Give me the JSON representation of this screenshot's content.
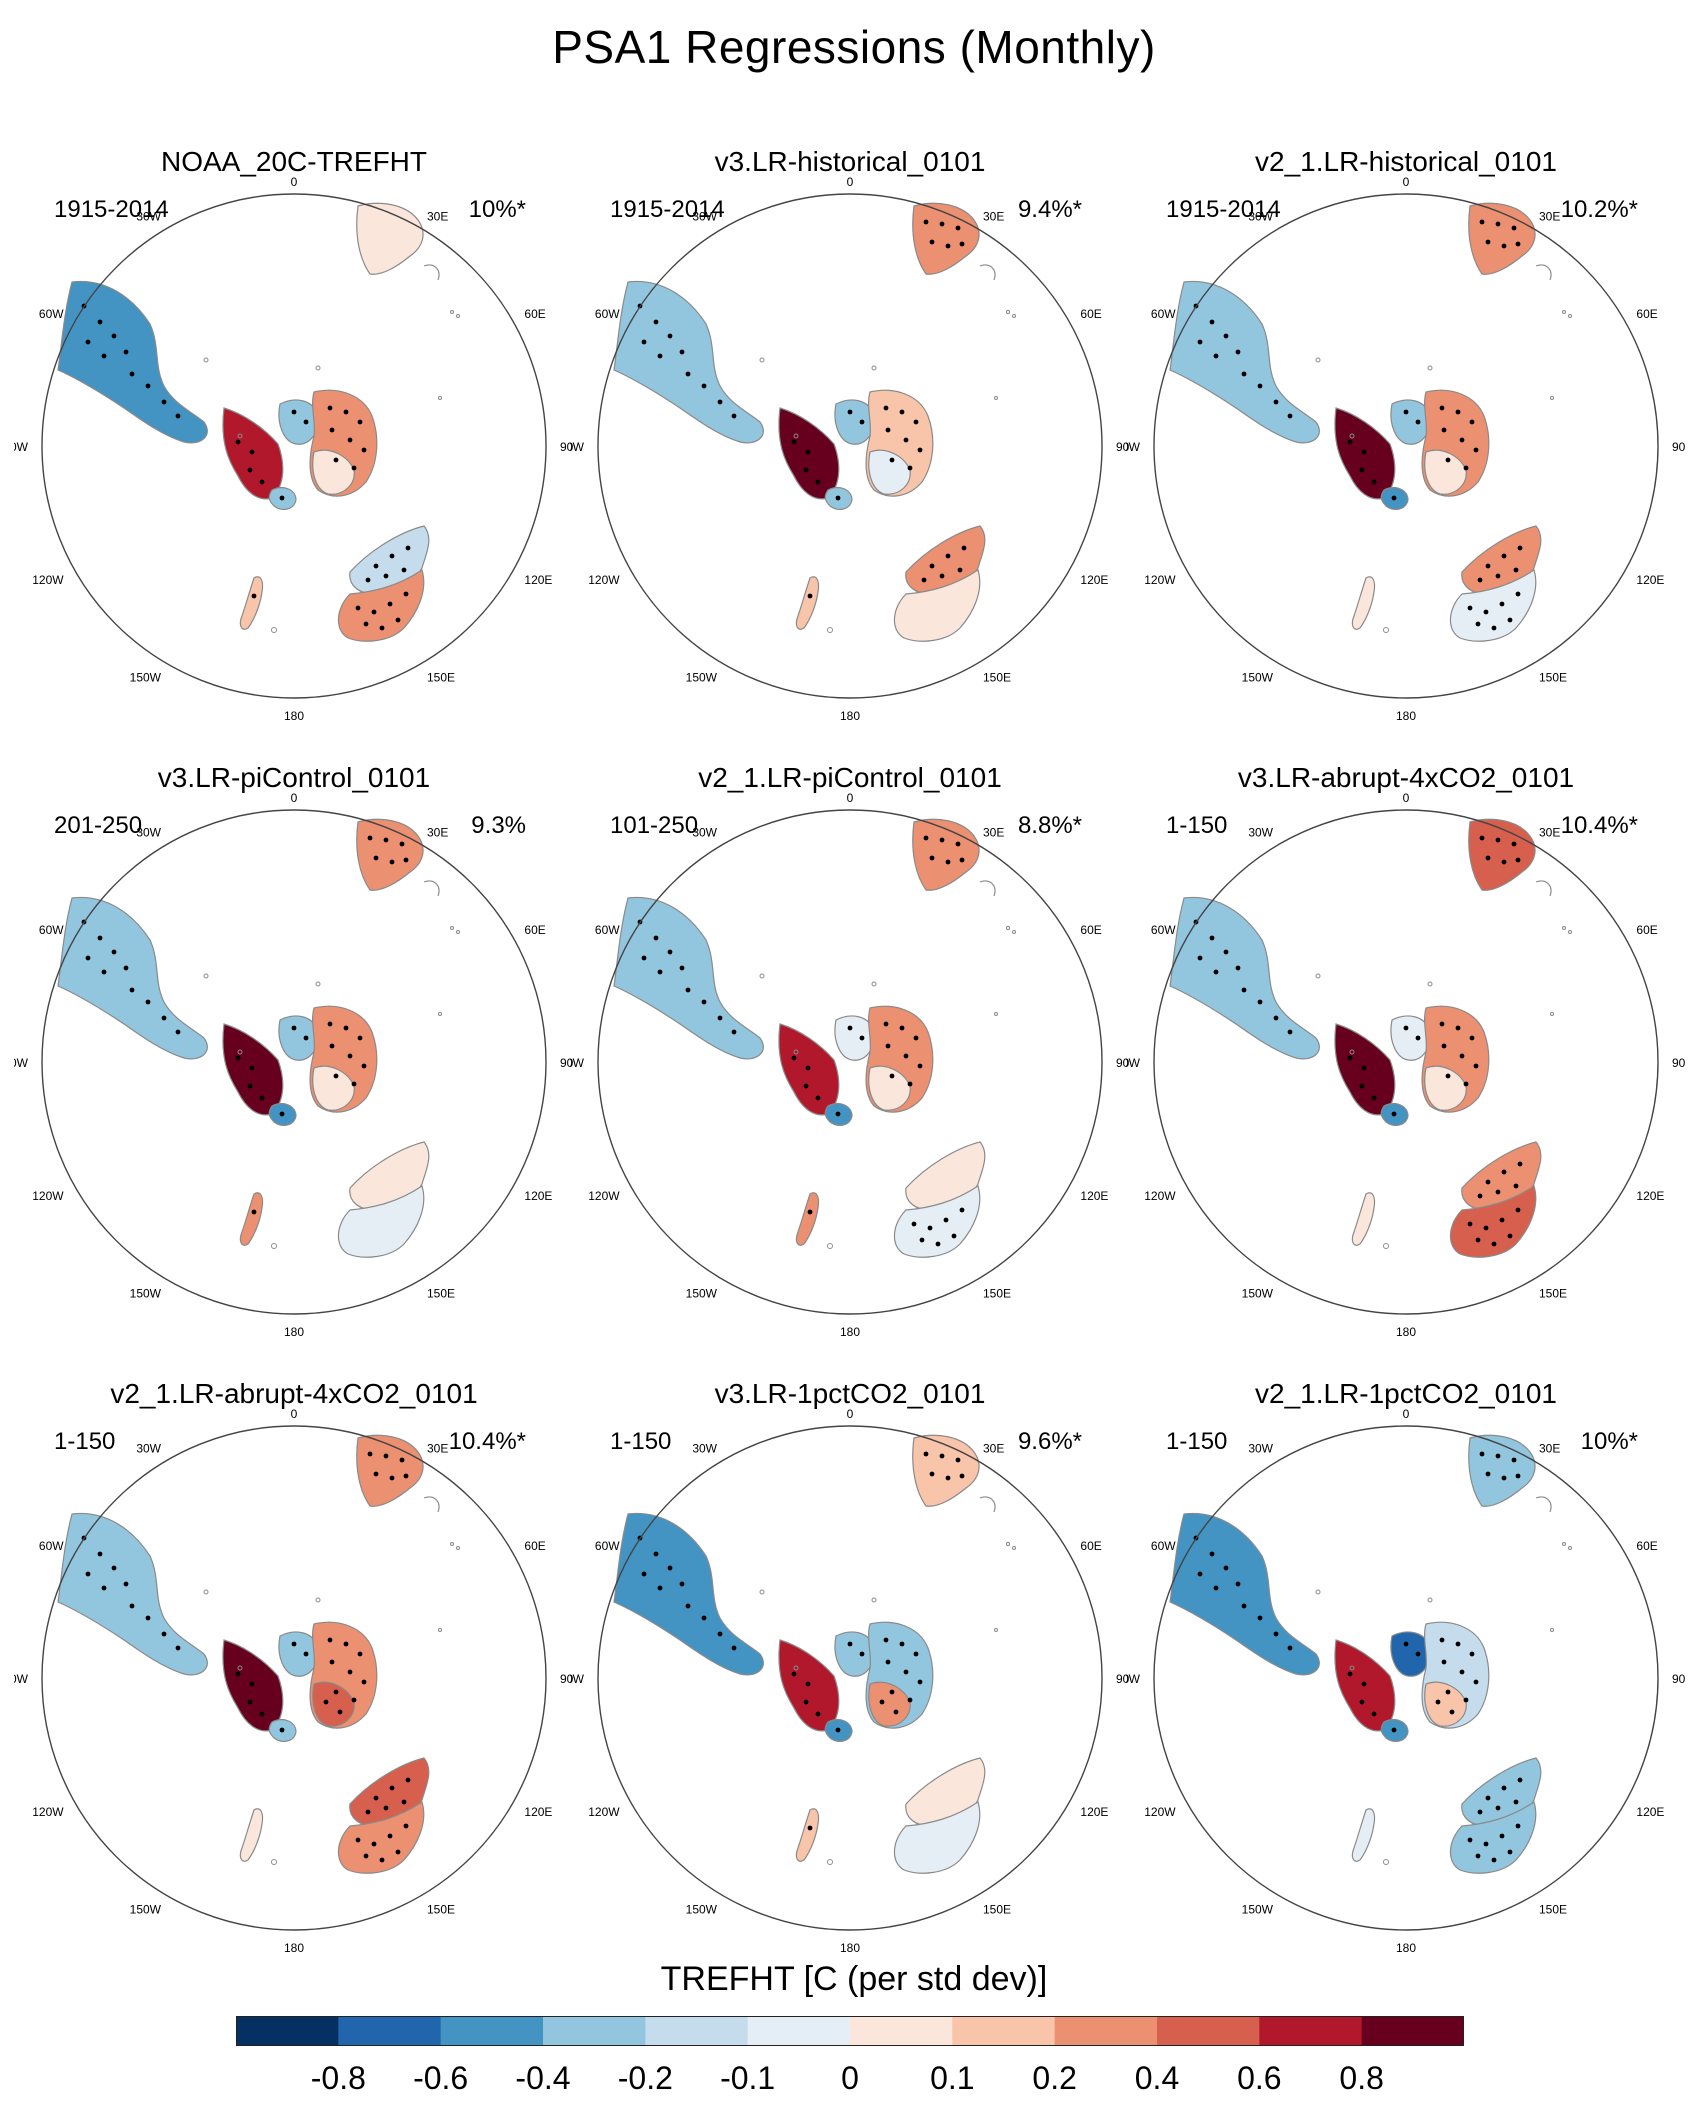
{
  "figure": {
    "title": "PSA1 Regressions (Monthly)",
    "colorbar_title": "TREFHT [C (per std dev)]"
  },
  "colors": {
    "scale": [
      "#053061",
      "#2166ac",
      "#4393c3",
      "#92c5de",
      "#c5dcec",
      "#e6eef5",
      "#fbe6dc",
      "#f8c4aa",
      "#eb9071",
      "#d6604d",
      "#b2182b",
      "#67001f"
    ],
    "coast": "#8a8a8a",
    "circle": "#444444"
  },
  "colorbar_ticks": [
    "-0.8",
    "-0.6",
    "-0.4",
    "-0.2",
    "-0.1",
    "0",
    "0.1",
    "0.2",
    "0.4",
    "0.6",
    "0.8"
  ],
  "lon_labels": [
    "0",
    "30E",
    "60E",
    "90E",
    "120E",
    "150E",
    "180",
    "150W",
    "120W",
    "90W",
    "60W",
    "30W"
  ],
  "panels": [
    {
      "title": "NOAA_20C-TREFHT",
      "years": "1915-2014",
      "pct": "10%*",
      "fields": {
        "sam": -0.45,
        "sa": 0.05,
        "peninsula": 0.65,
        "wais": -0.3,
        "eais": 0.35,
        "eais_sw": 0.05,
        "ross": -0.4,
        "nw_aus": -0.15,
        "se_aus": 0.3,
        "nz": 0.1
      }
    },
    {
      "title": "v3.LR-historical_0101",
      "years": "1915-2014",
      "pct": "9.4%*",
      "fields": {
        "sam": -0.3,
        "sa": 0.3,
        "peninsula": 0.85,
        "wais": -0.25,
        "eais": 0.1,
        "eais_sw": -0.05,
        "ross": -0.4,
        "nw_aus": 0.25,
        "se_aus": 0.05,
        "nz": 0.1
      }
    },
    {
      "title": "v2_1.LR-historical_0101",
      "years": "1915-2014",
      "pct": "10.2%*",
      "fields": {
        "sam": -0.25,
        "sa": 0.3,
        "peninsula": 0.8,
        "wais": -0.3,
        "eais": 0.3,
        "eais_sw": 0.05,
        "ross": -0.5,
        "nw_aus": 0.35,
        "se_aus": -0.1,
        "nz": 0.05
      }
    },
    {
      "title": "v3.LR-piControl_0101",
      "years": "201-250",
      "pct": "9.3%",
      "fields": {
        "sam": -0.3,
        "sa": 0.35,
        "peninsula": 0.8,
        "wais": -0.3,
        "eais": 0.2,
        "eais_sw": 0.05,
        "ross": -0.45,
        "nw_aus": 0.05,
        "se_aus": -0.05,
        "nz": 0.2
      }
    },
    {
      "title": "v2_1.LR-piControl_0101",
      "years": "101-250",
      "pct": "8.8%*",
      "fields": {
        "sam": -0.3,
        "sa": 0.2,
        "peninsula": 0.75,
        "wais": -0.1,
        "eais": 0.2,
        "eais_sw": 0.05,
        "ross": -0.5,
        "nw_aus": 0.05,
        "se_aus": -0.1,
        "nz": 0.2
      }
    },
    {
      "title": "v3.LR-abrupt-4xCO2_0101",
      "years": "1-150",
      "pct": "10.4%*",
      "fields": {
        "sam": -0.4,
        "sa": 0.4,
        "peninsula": 0.85,
        "wais": -0.1,
        "eais": 0.3,
        "eais_sw": 0.05,
        "ross": -0.45,
        "nw_aus": 0.3,
        "se_aus": 0.4,
        "nz": 0.05
      }
    },
    {
      "title": "v2_1.LR-abrupt-4xCO2_0101",
      "years": "1-150",
      "pct": "10.4%*",
      "fields": {
        "sam": -0.35,
        "sa": 0.35,
        "peninsula": 0.85,
        "wais": -0.3,
        "eais": 0.35,
        "eais_sw": 0.4,
        "ross": -0.3,
        "nw_aus": 0.45,
        "se_aus": 0.35,
        "nz": 0.05
      }
    },
    {
      "title": "v3.LR-1pctCO2_0101",
      "years": "1-150",
      "pct": "9.6%*",
      "fields": {
        "sam": -0.45,
        "sa": 0.1,
        "peninsula": 0.75,
        "wais": -0.35,
        "eais": -0.3,
        "eais_sw": 0.2,
        "ross": -0.55,
        "nw_aus": 0.05,
        "se_aus": -0.05,
        "nz": 0.1
      }
    },
    {
      "title": "v2_1.LR-1pctCO2_0101",
      "years": "1-150",
      "pct": "10%*",
      "fields": {
        "sam": -0.6,
        "sa": -0.3,
        "peninsula": 0.65,
        "wais": -0.65,
        "eais": -0.2,
        "eais_sw": 0.1,
        "ross": -0.6,
        "nw_aus": -0.3,
        "se_aus": -0.3,
        "nz": -0.05
      }
    }
  ]
}
